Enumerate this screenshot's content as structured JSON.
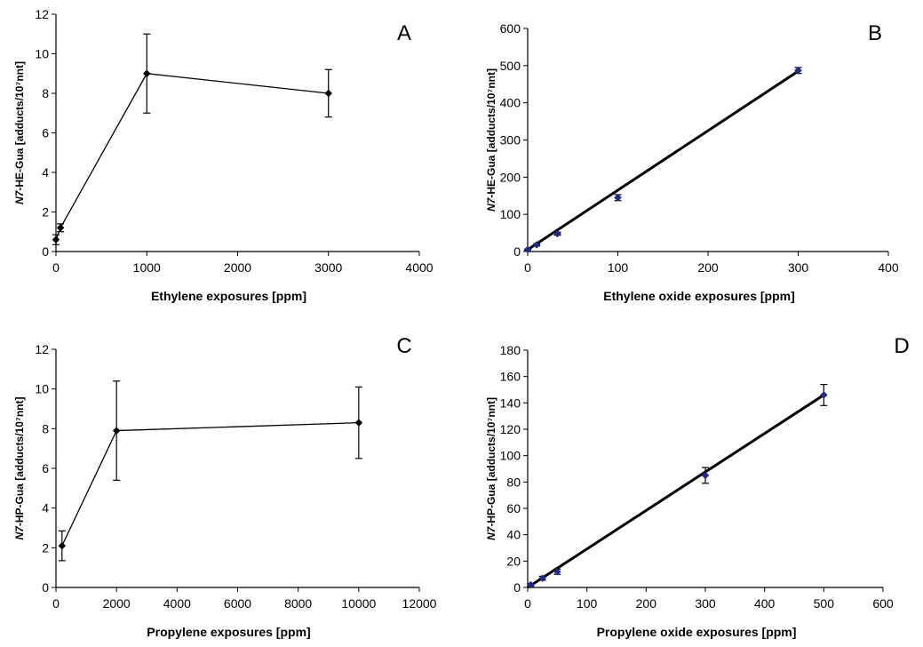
{
  "chart_data": [
    {
      "panel": "A",
      "type": "line",
      "xlabel": "Ethylene exposures [ppm]",
      "ylabel_prefix": "N7",
      "ylabel_rest": "-HE-Gua [adducts/10⁷nnt]",
      "xlim": [
        0,
        4000
      ],
      "xstep": 1000,
      "ylim": [
        0,
        12
      ],
      "ystep": 2,
      "show_marker_line": true,
      "fit_line": false,
      "point_color": "#000000",
      "series": [
        {
          "x": [
            0,
            50,
            1000,
            3000
          ],
          "y": [
            0.6,
            1.2,
            9.0,
            8.0
          ],
          "err": [
            0.25,
            0.2,
            2.0,
            1.2
          ]
        }
      ]
    },
    {
      "panel": "B",
      "type": "scatter",
      "xlabel": "Ethylene oxide exposures [ppm]",
      "ylabel_prefix": "N7",
      "ylabel_rest": "-HE-Gua [adducts/10⁷nnt]",
      "xlim": [
        0,
        400
      ],
      "xstep": 100,
      "ylim": [
        0,
        600
      ],
      "ystep": 100,
      "show_marker_line": false,
      "fit_line": true,
      "fit": [
        [
          0,
          5
        ],
        [
          300,
          485
        ]
      ],
      "point_color": "#1f2a8a",
      "series": [
        {
          "x": [
            0,
            10,
            33,
            100,
            300
          ],
          "y": [
            5,
            18,
            48,
            145,
            487
          ],
          "err": [
            2,
            3,
            4,
            8,
            8
          ]
        }
      ]
    },
    {
      "panel": "C",
      "type": "line",
      "xlabel": "Propylene exposures [ppm]",
      "ylabel_prefix": "N7",
      "ylabel_rest": "-HP-Gua [adducts/10⁷nnt]",
      "xlim": [
        0,
        12000
      ],
      "xstep": 2000,
      "ylim": [
        0,
        12
      ],
      "ystep": 2,
      "show_marker_line": true,
      "fit_line": false,
      "point_color": "#000000",
      "series": [
        {
          "x": [
            200,
            2000,
            10000
          ],
          "y": [
            2.1,
            7.9,
            8.3
          ],
          "err": [
            0.75,
            2.5,
            1.8
          ]
        }
      ]
    },
    {
      "panel": "D",
      "type": "scatter",
      "xlabel": "Propylene oxide exposures [ppm]",
      "ylabel_prefix": "N7",
      "ylabel_rest": "-HP-Gua [adducts/10⁷nnt]",
      "xlim": [
        0,
        600
      ],
      "xstep": 100,
      "ylim": [
        0,
        180
      ],
      "ystep": 20,
      "show_marker_line": false,
      "fit_line": true,
      "fit": [
        [
          0,
          0
        ],
        [
          500,
          146
        ]
      ],
      "point_color": "#1f2a8a",
      "series": [
        {
          "x": [
            5,
            25,
            50,
            300,
            500
          ],
          "y": [
            2,
            7,
            12,
            85,
            146
          ],
          "err": [
            1,
            1.5,
            2,
            6,
            8
          ]
        }
      ]
    }
  ]
}
